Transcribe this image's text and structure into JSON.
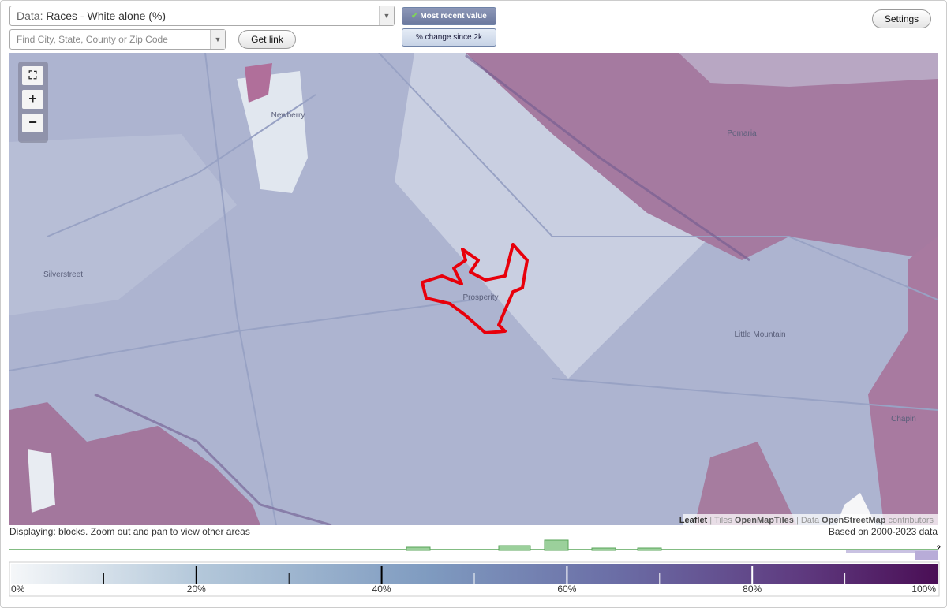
{
  "controls": {
    "data_label": "Data:",
    "data_value": "Races - White alone (%)",
    "search_placeholder": "Find City, State, County or Zip Code",
    "get_link": "Get link",
    "mode_buttons": [
      "Most recent value",
      "% change since 2k"
    ],
    "settings": "Settings"
  },
  "zoom": {
    "zoom_in": "+",
    "zoom_out": "−"
  },
  "map": {
    "places": [
      "Newberry",
      "Pomaria",
      "Silverstreet",
      "Prosperity",
      "Little Mountain",
      "Chapin"
    ],
    "attribution": [
      "Leaflet",
      "| Tiles",
      "OpenMapTiles",
      "| Data",
      "OpenStreetMap",
      "contributors"
    ]
  },
  "status": {
    "displaying": "Displaying: blocks. Zoom out and pan to view other areas",
    "based_on": "Based on 2000-2023 data"
  },
  "legend": {
    "labels": [
      "0%",
      "20%",
      "40%",
      "60%",
      "80%",
      "100%"
    ],
    "unknown": "?"
  }
}
